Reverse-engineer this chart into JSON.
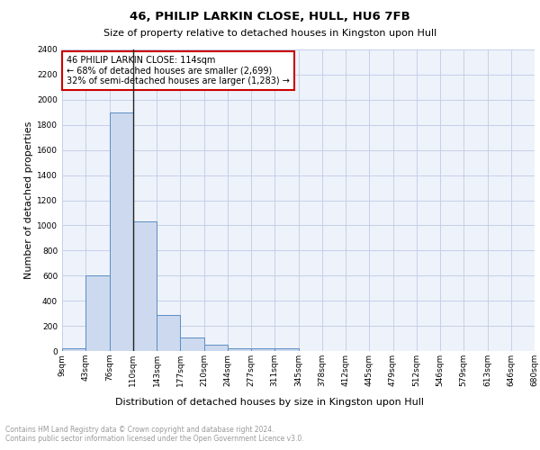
{
  "title1": "46, PHILIP LARKIN CLOSE, HULL, HU6 7FB",
  "title2": "Size of property relative to detached houses in Kingston upon Hull",
  "xlabel": "Distribution of detached houses by size in Kingston upon Hull",
  "ylabel": "Number of detached properties",
  "footnote": "Contains HM Land Registry data © Crown copyright and database right 2024.\nContains public sector information licensed under the Open Government Licence v3.0.",
  "bin_labels": [
    "9sqm",
    "43sqm",
    "76sqm",
    "110sqm",
    "143sqm",
    "177sqm",
    "210sqm",
    "244sqm",
    "277sqm",
    "311sqm",
    "345sqm",
    "378sqm",
    "412sqm",
    "445sqm",
    "479sqm",
    "512sqm",
    "546sqm",
    "579sqm",
    "613sqm",
    "646sqm",
    "680sqm"
  ],
  "bar_heights": [
    20,
    600,
    1900,
    1030,
    290,
    110,
    50,
    25,
    20,
    20,
    0,
    0,
    0,
    0,
    0,
    0,
    0,
    0,
    0,
    0
  ],
  "bar_color": "#ccd9ee",
  "bar_edge_color": "#5b8ec4",
  "ylim": [
    0,
    2400
  ],
  "yticks": [
    0,
    200,
    400,
    600,
    800,
    1000,
    1200,
    1400,
    1600,
    1800,
    2000,
    2200,
    2400
  ],
  "annotation_text": "46 PHILIP LARKIN CLOSE: 114sqm\n← 68% of detached houses are smaller (2,699)\n32% of semi-detached houses are larger (1,283) →",
  "annotation_color": "#cc0000",
  "vline_bin_index": 3,
  "background_color": "#eef2fa",
  "grid_color": "#c5cfe8",
  "title1_fontsize": 9.5,
  "title2_fontsize": 8,
  "ylabel_fontsize": 8,
  "xlabel_fontsize": 8,
  "footnote_fontsize": 5.5,
  "tick_fontsize": 6.5
}
